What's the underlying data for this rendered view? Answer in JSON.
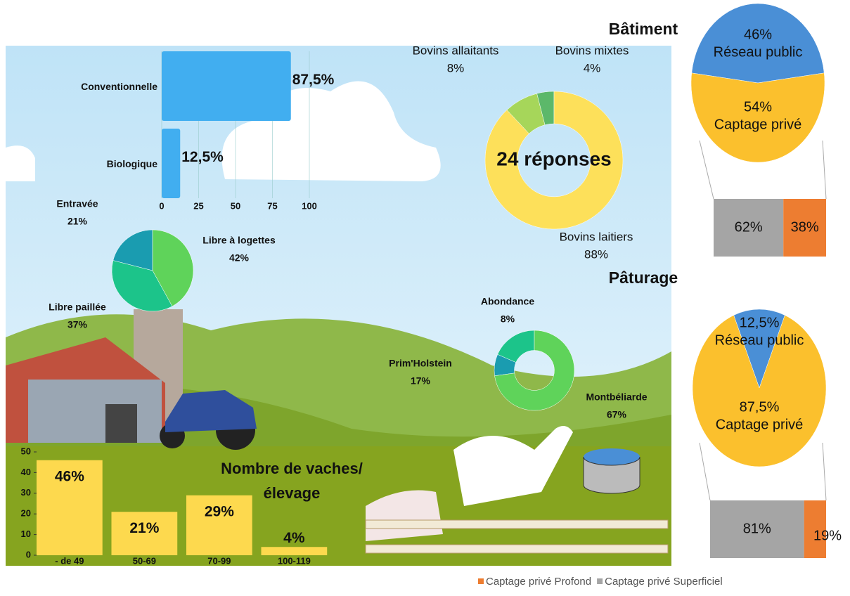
{
  "chart_data": [
    {
      "type": "hbar",
      "categories": [
        "Conventionnelle",
        "Biologique"
      ],
      "values": [
        87.5,
        12.5
      ],
      "value_labels": [
        "87,5%",
        "12,5%"
      ],
      "color": "#41aef0",
      "xlim": [
        0,
        100
      ],
      "xticks": [
        0,
        25,
        50,
        75,
        100
      ]
    },
    {
      "type": "donut",
      "center_label": "24 réponses",
      "categories": [
        "Bovins allaitants",
        "Bovins mixtes",
        "Bovins laitiers"
      ],
      "values": [
        8,
        4,
        88
      ],
      "value_labels": [
        "8%",
        "4%",
        "88%"
      ],
      "colors": [
        "#a6d65a",
        "#5cb86a",
        "#fde05a"
      ]
    },
    {
      "type": "pie",
      "categories": [
        "Entravée",
        "Libre à logettes",
        "Libre paillée"
      ],
      "values": [
        21,
        42,
        37
      ],
      "value_labels": [
        "21%",
        "42%",
        "37%"
      ],
      "colors": [
        "#1a9cb0",
        "#5fd35a",
        "#1cc48a"
      ]
    },
    {
      "type": "donut",
      "categories": [
        "Abondance",
        "Prim'Holstein",
        "Montbéliarde"
      ],
      "values": [
        8,
        17,
        67
      ],
      "value_labels": [
        "8%",
        "17%",
        "67%"
      ],
      "colors": [
        "#1a9cb0",
        "#1cc48a",
        "#5fd35a"
      ]
    },
    {
      "type": "bar",
      "title": [
        "Nombre de vaches/",
        "élevage"
      ],
      "categories": [
        "- de 49",
        "50-69",
        "70-99",
        "100-119"
      ],
      "values": [
        46,
        21,
        29,
        4
      ],
      "value_labels": [
        "46%",
        "21%",
        "29%",
        "4%"
      ],
      "color": "#fdd94e",
      "ylim": [
        0,
        50
      ],
      "yticks": [
        0,
        10,
        20,
        30,
        40,
        50
      ]
    },
    {
      "type": "pie",
      "title": "Bâtiment",
      "categories": [
        "Réseau public",
        "Captage privé"
      ],
      "values": [
        46,
        54
      ],
      "value_labels": [
        "46%",
        "54%"
      ],
      "colors": [
        "#4a8fd6",
        "#fbc02d"
      ]
    },
    {
      "type": "pie",
      "title": "Pâturage",
      "categories": [
        "Réseau public",
        "Captage privé"
      ],
      "values": [
        12.5,
        87.5
      ],
      "value_labels": [
        "12,5%",
        "87,5%"
      ],
      "colors": [
        "#4a8fd6",
        "#fbc02d"
      ]
    },
    {
      "type": "stacked_hbar",
      "xlim": [
        0,
        100
      ],
      "series": [
        {
          "name": "Captage privé Profond",
          "color": "#ed7d31",
          "values": [
            38,
            19
          ],
          "value_labels": [
            "38%",
            "19%"
          ]
        },
        {
          "name": "Captage privé Superficiel",
          "color": "#a5a5a5",
          "values": [
            62,
            81
          ],
          "value_labels": [
            "62%",
            "81%"
          ]
        }
      ]
    }
  ]
}
